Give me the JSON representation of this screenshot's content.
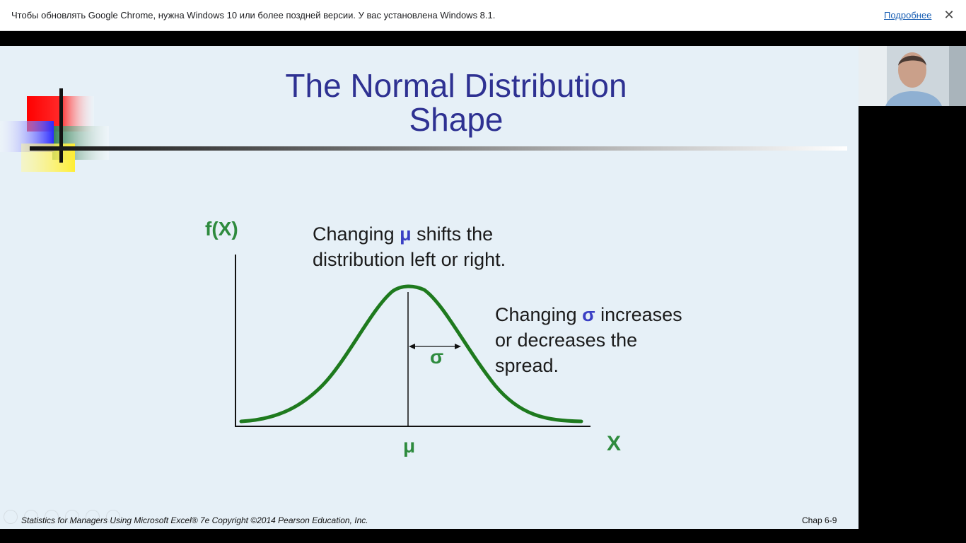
{
  "infobar": {
    "message": "Чтобы обновлять Google Chrome, нужна Windows 10 или более поздней версии. У вас установлена Windows 8.1.",
    "link_label": "Подробнее",
    "close_icon": "close-icon"
  },
  "slide": {
    "title_line1": "The Normal Distribution",
    "title_line2": "Shape",
    "y_label": "f(X)",
    "x_label": "X",
    "mu_label": "μ",
    "sigma_label": "σ",
    "annotation_mu": {
      "pre": "Changing ",
      "symbol": "μ",
      "post": " shifts the",
      "line2": "distribution left or right."
    },
    "annotation_sigma": {
      "pre": "Changing ",
      "symbol": "σ",
      "post": " increases",
      "line2": "or decreases the",
      "line3": "spread."
    },
    "footer": "Statistics for Managers Using Microsoft Excel® 7e Copyright ©2014 Pearson Education, Inc.",
    "page": "Chap 6-9"
  },
  "colors": {
    "title": "#2e3192",
    "curve": "#1e7a1e",
    "label_green": "#2e8b3e",
    "symbol_blue": "#3a3fc4",
    "slide_bg": "#e6f0f7"
  }
}
